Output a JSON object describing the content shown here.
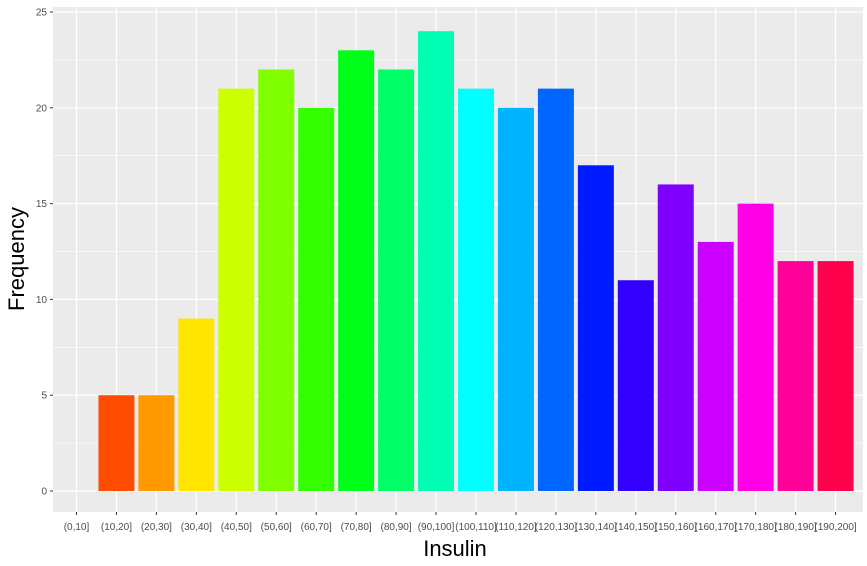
{
  "chart_data": {
    "type": "bar",
    "title": "",
    "xlabel": "Insulin",
    "ylabel": "Frequency",
    "ylim": [
      0,
      25
    ],
    "yticks": [
      0,
      5,
      10,
      15,
      20,
      25
    ],
    "grid": true,
    "legend": "none",
    "categories": [
      "(0,10]",
      "(10,20]",
      "(20,30]",
      "(30,40]",
      "(40,50]",
      "(50,60]",
      "(60,70]",
      "(70,80]",
      "(80,90]",
      "(90,100]",
      "(100,110]",
      "(110,120]",
      "(120,130]",
      "(130,140]",
      "(140,150]",
      "(150,160]",
      "(160,170]",
      "(170,180]",
      "(180,190]",
      "(190,200]"
    ],
    "values": [
      0,
      5,
      5,
      9,
      21,
      22,
      20,
      23,
      22,
      24,
      21,
      20,
      21,
      17,
      11,
      16,
      13,
      15,
      12,
      12
    ],
    "colors": [
      "#FF0000",
      "#FF4C00",
      "#FF9900",
      "#FFE500",
      "#CCFF00",
      "#80FF00",
      "#33FF00",
      "#00FF19",
      "#00FF66",
      "#00FFB2",
      "#00FFFF",
      "#00B3FF",
      "#0066FF",
      "#001AFF",
      "#3300FF",
      "#7F00FF",
      "#CC00FF",
      "#FF00E6",
      "#FF0099",
      "#FF004D"
    ],
    "panel_background": "#EBEBEB",
    "grid_color": "#FFFFFF"
  }
}
